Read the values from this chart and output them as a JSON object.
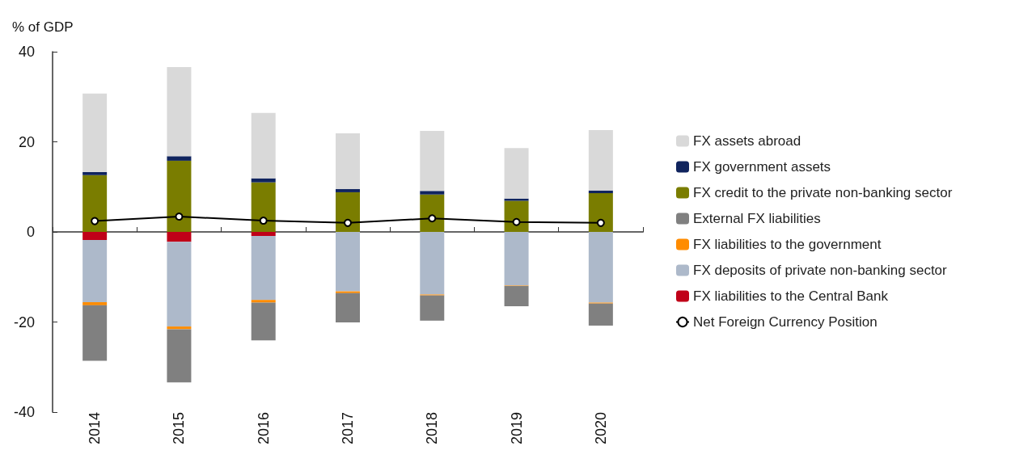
{
  "chart_data": {
    "type": "bar",
    "stacked": true,
    "ylabel": "% of GDP",
    "categories": [
      "2014",
      "2015",
      "2016",
      "2017",
      "2018",
      "2019",
      "2020"
    ],
    "series": [
      {
        "name": "FX credit to the private non-banking sector",
        "color": "#7a7d00",
        "values": [
          12.6,
          15.8,
          11.0,
          8.8,
          8.3,
          6.9,
          8.6
        ]
      },
      {
        "name": "FX government assets",
        "color": "#10245e",
        "values": [
          0.7,
          1.0,
          0.9,
          0.7,
          0.8,
          0.5,
          0.6
        ]
      },
      {
        "name": "FX assets abroad",
        "color": "#d9d9d9",
        "values": [
          17.4,
          19.8,
          14.5,
          12.4,
          13.3,
          11.2,
          13.4
        ]
      },
      {
        "name": "FX liabilities to the Central Bank",
        "color": "#c00018",
        "values": [
          -1.8,
          -2.2,
          -0.9,
          0,
          0,
          0,
          0
        ]
      },
      {
        "name": "FX deposits of private non-banking sector",
        "color": "#adb9ca",
        "values": [
          -13.8,
          -18.8,
          -14.2,
          -13.2,
          -13.9,
          -11.9,
          -15.7
        ]
      },
      {
        "name": "FX liabilities to the government",
        "color": "#ff8c00",
        "values": [
          -0.7,
          -0.6,
          -0.6,
          -0.4,
          -0.2,
          -0.1,
          -0.2
        ]
      },
      {
        "name": "External FX liabilities",
        "color": "#808080",
        "values": [
          -12.3,
          -11.8,
          -8.4,
          -6.5,
          -5.6,
          -4.5,
          -4.9
        ]
      },
      {
        "name": "Net Foreign Currency Position",
        "type": "line",
        "color": "#000000",
        "marker": "circle",
        "values": [
          2.4,
          3.4,
          2.5,
          2.0,
          3.0,
          2.2,
          2.0
        ]
      }
    ],
    "ylim": [
      -40,
      40
    ],
    "yticks": [
      -40,
      -20,
      0,
      20,
      40
    ],
    "legend": "right"
  }
}
